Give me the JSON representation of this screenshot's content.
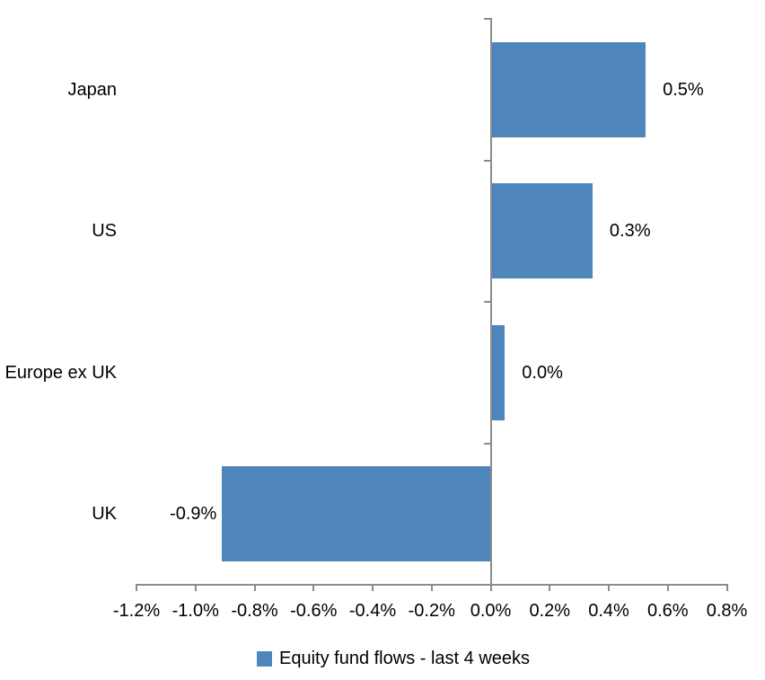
{
  "chart_data": {
    "type": "bar",
    "orientation": "horizontal",
    "title": "",
    "xlabel": "",
    "ylabel": "",
    "categories": [
      "Japan",
      "US",
      "Europe ex UK",
      "UK"
    ],
    "values": [
      0.5,
      0.3,
      0.0,
      -0.9
    ],
    "value_labels": [
      "0.5%",
      "0.3%",
      "0.0%",
      "-0.9%"
    ],
    "bar_values_est": [
      0.525,
      0.345,
      0.048,
      -0.91
    ],
    "unit": "%",
    "xlim": [
      -1.2,
      0.8
    ],
    "x_ticks": [
      -1.2,
      -1.0,
      -0.8,
      -0.6,
      -0.4,
      -0.2,
      0.0,
      0.2,
      0.4,
      0.6,
      0.8
    ],
    "x_tick_labels": [
      "-1.2%",
      "-1.0%",
      "-0.8%",
      "-0.6%",
      "-0.4%",
      "-0.2%",
      "0.0%",
      "0.2%",
      "0.4%",
      "0.6%",
      "0.8%"
    ],
    "grid": false,
    "legend": {
      "position": "bottom",
      "entries": [
        {
          "label": "Equity fund flows - last 4 weeks",
          "color": "#4E86BC"
        }
      ]
    },
    "colors": {
      "bar": "#4E86BC",
      "axis": "#8C8C8C",
      "text": "#000000",
      "background": "#FFFFFF"
    }
  }
}
